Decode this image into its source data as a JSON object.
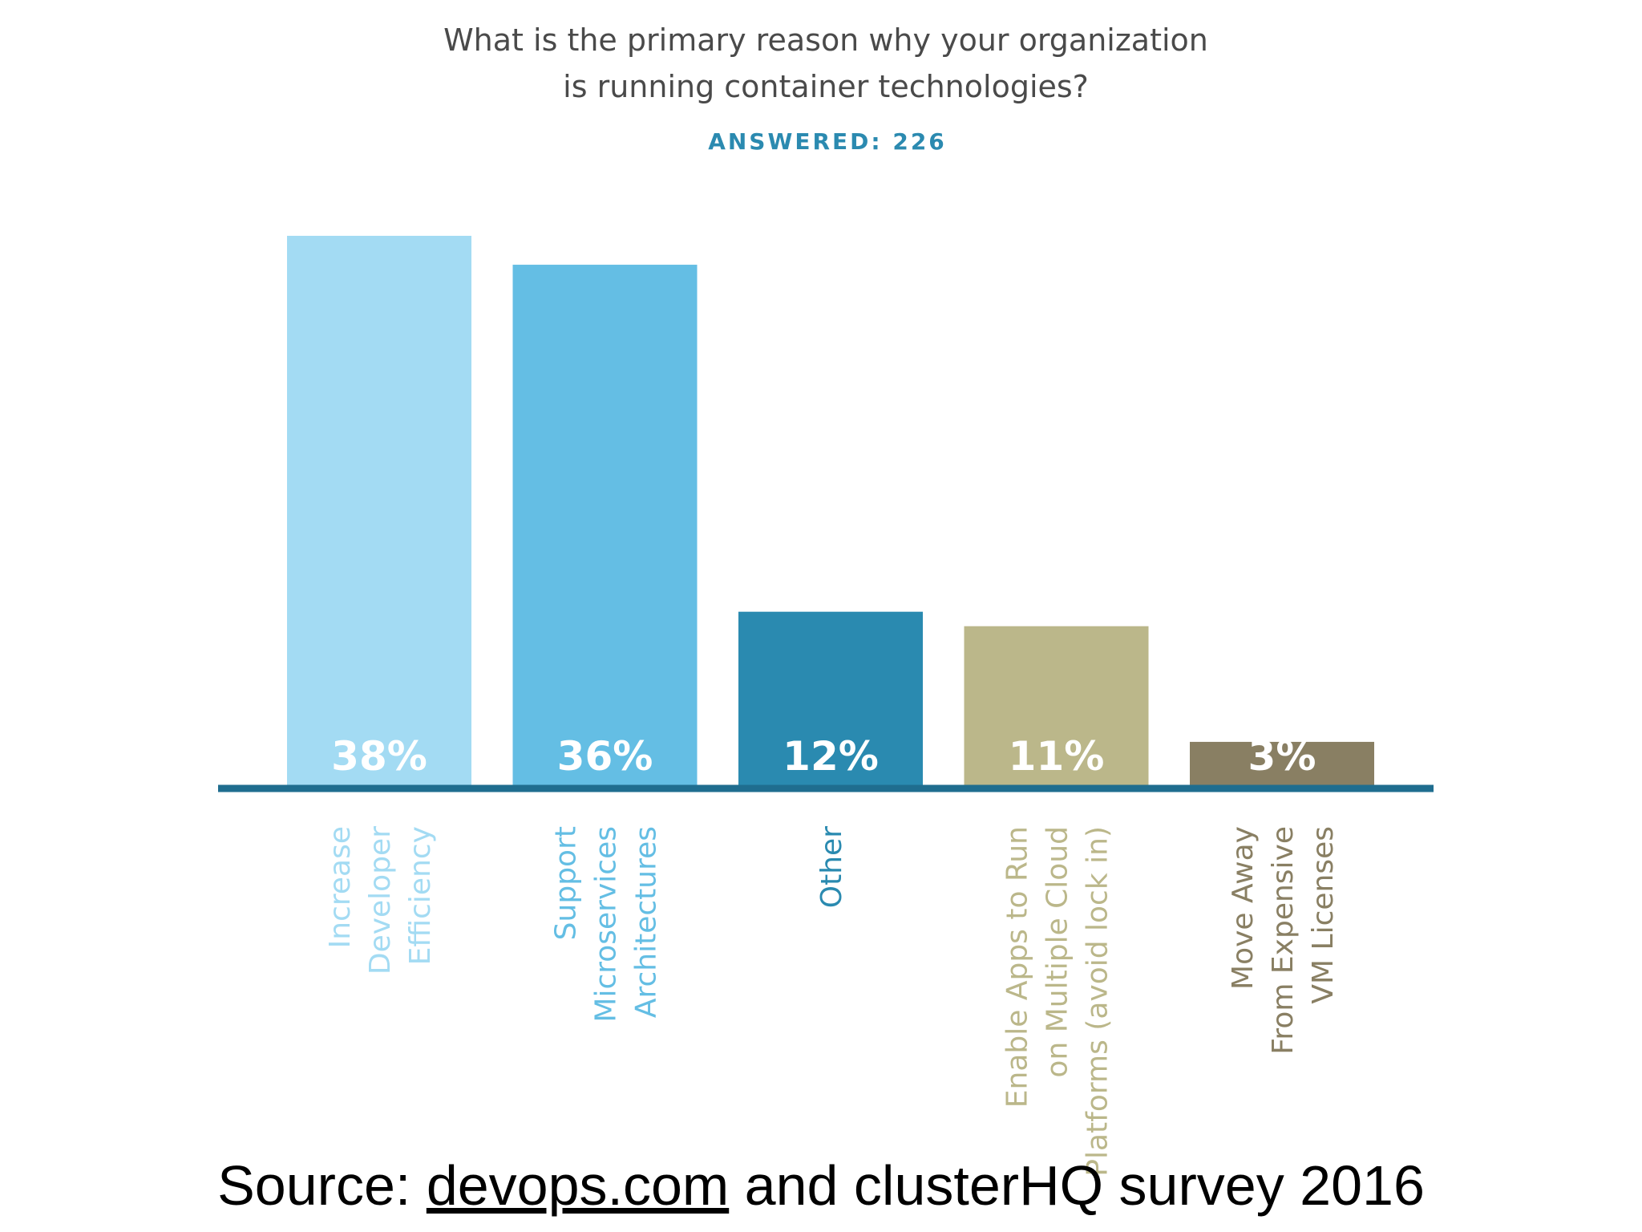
{
  "chart_data": {
    "type": "bar",
    "title": "What is the primary reason why your organization is running container technologies?",
    "title_lines": [
      "What is the primary reason why your organization",
      "is running container technologies?"
    ],
    "subtitle": "ANSWERED: 226",
    "categories": [
      "Increase Developer Efficiency",
      "Support Microservices Architectures",
      "Other",
      "Enable Apps to Run on Multiple Cloud Platforms (avoid lock in)",
      "Move Away From Expensive VM Licenses"
    ],
    "category_lines": [
      [
        "Increase",
        "Developer",
        "Efficiency"
      ],
      [
        "Support",
        "Microservices",
        "Architectures"
      ],
      [
        "Other"
      ],
      [
        "Enable Apps to Run",
        "on Multiple Cloud",
        "Platforms (avoid lock in)"
      ],
      [
        "Move Away",
        "From Expensive",
        "VM Licenses"
      ]
    ],
    "values": [
      38,
      36,
      12,
      11,
      3
    ],
    "value_labels": [
      "38%",
      "36%",
      "12%",
      "11%",
      "3%"
    ],
    "unit": "%",
    "ylim": [
      0,
      38
    ],
    "xlabel": "",
    "ylabel": "",
    "grid": false,
    "legend": "none",
    "colors": [
      "#a3dbf3",
      "#64bee4",
      "#2a8ab0",
      "#bbb78a",
      "#897f63"
    ],
    "label_colors": [
      "#a3dbf3",
      "#64bee4",
      "#2a8ab0",
      "#bbb78a",
      "#897f63"
    ],
    "baseline_color": "#1f6d8f"
  },
  "footer": {
    "prefix": "Source: ",
    "link": "devops.com",
    "suffix": " and clusterHQ survey 2016"
  }
}
